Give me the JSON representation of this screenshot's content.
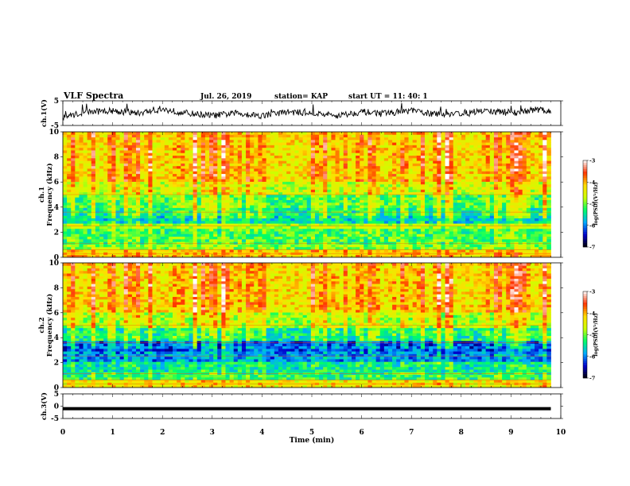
{
  "header": {
    "title": "VLF Spectra",
    "date": "Jul. 26, 2019",
    "station": "station= KAP",
    "start": "start UT =  11: 40: 1"
  },
  "chart_data": [
    {
      "type": "line",
      "panel": "ch1-waveform",
      "ylabel": "ch.1(V)",
      "ylim": [
        -5,
        5
      ],
      "y_ticks": [
        5,
        -5
      ],
      "xlim": [
        0,
        10
      ],
      "note_values": "irregular waveform fluctuating mostly between about -3 V and +4 V from 0 to about 9.8 min",
      "x": [
        0,
        0.5,
        1,
        1.5,
        2,
        2.5,
        3,
        3.5,
        4,
        4.5,
        5,
        5.5,
        6,
        6.5,
        7,
        7.5,
        8,
        8.5,
        9,
        9.5,
        9.8
      ],
      "y": [
        -1.5,
        0.5,
        1,
        0,
        1.5,
        0,
        -1,
        0,
        -1,
        0.5,
        0,
        -1,
        0.5,
        0,
        1,
        -0.5,
        0,
        1,
        0,
        1.5,
        0.5
      ],
      "color": "#000000"
    },
    {
      "type": "heatmap",
      "panel": "ch1-spectrogram",
      "ylabel": "ch.1\nFrequency (kHz)",
      "ylim": [
        0,
        10
      ],
      "y_ticks": [
        0,
        2,
        4,
        6,
        8,
        10
      ],
      "xlim": [
        0,
        10
      ],
      "data_extent_min": 9.8,
      "colorbar": {
        "label": "log(PSD)(V²/Hz)",
        "range": [
          -7,
          -3
        ],
        "ticks": [
          -3,
          -4,
          -5,
          -6,
          -7
        ]
      },
      "bands": [
        {
          "from_khz": 0,
          "to_khz": 0.6,
          "level": -4.2
        },
        {
          "from_khz": 0.6,
          "to_khz": 1.0,
          "level": -5.0
        },
        {
          "from_khz": 1.0,
          "to_khz": 2.2,
          "level": -5.2
        },
        {
          "from_khz": 2.2,
          "to_khz": 2.6,
          "level": -4.8
        },
        {
          "from_khz": 2.6,
          "to_khz": 3.3,
          "level": -5.6
        },
        {
          "from_khz": 3.3,
          "to_khz": 3.8,
          "level": -5.4
        },
        {
          "from_khz": 3.8,
          "to_khz": 5.0,
          "level": -5.2
        },
        {
          "from_khz": 5.0,
          "to_khz": 6.0,
          "level": -4.7
        },
        {
          "from_khz": 6.0,
          "to_khz": 10.0,
          "level": -4.3
        }
      ]
    },
    {
      "type": "heatmap",
      "panel": "ch2-spectrogram",
      "ylabel": "ch.2\nFrequency (kHz)",
      "ylim": [
        0,
        10
      ],
      "y_ticks": [
        0,
        2,
        4,
        6,
        8,
        10
      ],
      "xlim": [
        0,
        10
      ],
      "data_extent_min": 9.8,
      "colorbar": {
        "label": "log(PSD)(V²/Hz)",
        "range": [
          -7,
          -3
        ],
        "ticks": [
          -3,
          -4,
          -5,
          -6,
          -7
        ]
      },
      "bands": [
        {
          "from_khz": 0,
          "to_khz": 0.5,
          "level": -4.4
        },
        {
          "from_khz": 0.5,
          "to_khz": 1.2,
          "level": -5.3
        },
        {
          "from_khz": 1.2,
          "to_khz": 2.0,
          "level": -5.5
        },
        {
          "from_khz": 2.0,
          "to_khz": 2.8,
          "level": -6.0
        },
        {
          "from_khz": 2.8,
          "to_khz": 3.6,
          "level": -6.2
        },
        {
          "from_khz": 3.6,
          "to_khz": 4.6,
          "level": -5.4
        },
        {
          "from_khz": 4.6,
          "to_khz": 6.0,
          "level": -4.8
        },
        {
          "from_khz": 6.0,
          "to_khz": 10.0,
          "level": -4.3
        }
      ]
    },
    {
      "type": "line",
      "panel": "ch3-waveform",
      "ylabel": "ch.3(V)",
      "ylim": [
        -5,
        5
      ],
      "y_ticks": [
        5,
        0,
        -5
      ],
      "xlim": [
        0,
        10
      ],
      "x": [
        0,
        9.8
      ],
      "y": [
        -1,
        -1
      ],
      "color": "#000000"
    }
  ],
  "xaxis": {
    "label": "Time (min)",
    "ticks": [
      "0",
      "1",
      "2",
      "3",
      "4",
      "5",
      "6",
      "7",
      "8",
      "9",
      "10"
    ]
  },
  "colors": {
    "colormap": [
      "#000000",
      "#0000cc",
      "#00aaff",
      "#00ff66",
      "#ccff00",
      "#ffdd00",
      "#ff3300",
      "#ffffff"
    ]
  }
}
